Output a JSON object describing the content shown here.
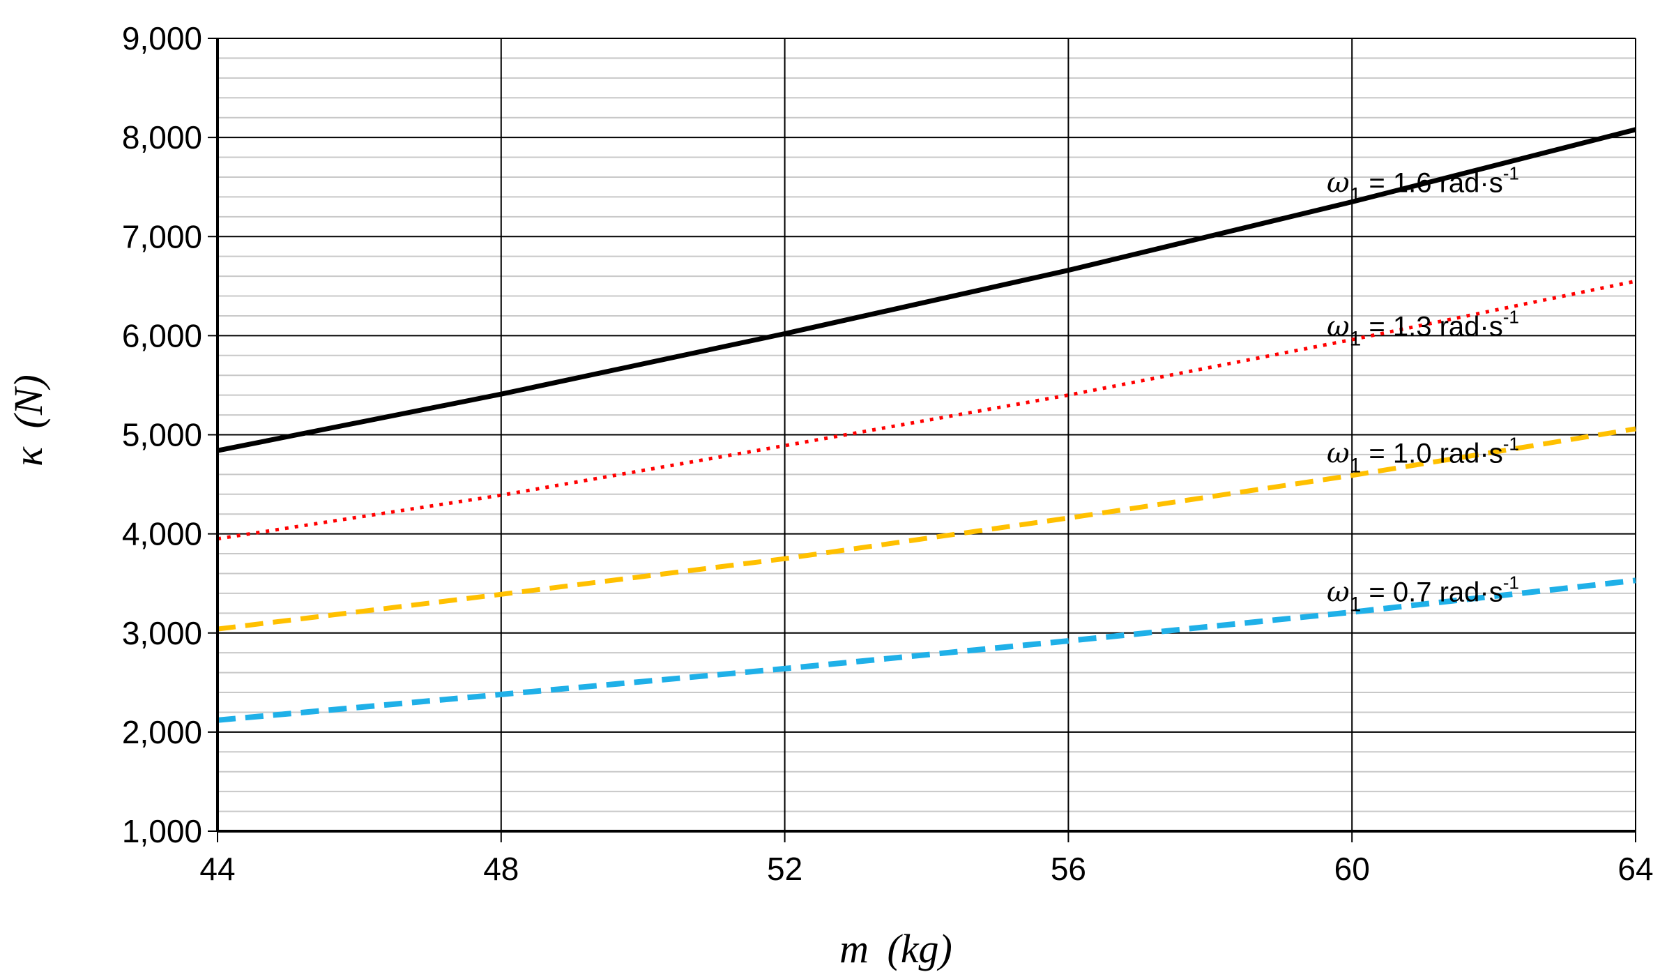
{
  "chart_data": {
    "type": "line",
    "title": "",
    "xlabel": {
      "symbol": "m",
      "unit": "(kg)"
    },
    "ylabel": {
      "symbol": "κ",
      "unit": "(N)"
    },
    "xlim": [
      44,
      64
    ],
    "ylim": [
      1000,
      9000
    ],
    "xticks": [
      44,
      48,
      52,
      56,
      60,
      64
    ],
    "xtick_labels": [
      "44",
      "48",
      "52",
      "56",
      "60",
      "64"
    ],
    "yticks": [
      1000,
      2000,
      3000,
      4000,
      5000,
      6000,
      7000,
      8000,
      9000
    ],
    "ytick_labels": [
      "1,000",
      "2,000",
      "3,000",
      "4,000",
      "5,000",
      "6,000",
      "7,000",
      "8,000",
      "9,000"
    ],
    "minor_y_step": 200,
    "grid": true,
    "legend": "none",
    "series": [
      {
        "name": "ω1 = 1.6 rad·s-1",
        "style": "solid",
        "color": "#000000",
        "x": [
          44,
          48,
          52,
          56,
          60,
          64
        ],
        "values": [
          4840,
          5410,
          6020,
          6660,
          7350,
          8080
        ],
        "label": {
          "omega": "ω",
          "sub": "1",
          "text": " = 1.6 rad·s",
          "sup": "-1",
          "x": 61.0,
          "y": 7450
        }
      },
      {
        "name": "ω1 = 1.3 rad·s-1",
        "style": "dotted",
        "color": "#ff0000",
        "x": [
          44,
          48,
          52,
          56,
          60,
          64
        ],
        "values": [
          3950,
          4390,
          4890,
          5400,
          5960,
          6550
        ],
        "label": {
          "omega": "ω",
          "sub": "1",
          "text": " = 1.3 rad·s",
          "sup": "-1",
          "x": 61.0,
          "y": 6000
        }
      },
      {
        "name": "ω1 = 1.0 rad·s-1",
        "style": "dashed",
        "color": "#ffc000",
        "x": [
          44,
          48,
          52,
          56,
          60,
          64
        ],
        "values": [
          3040,
          3390,
          3750,
          4160,
          4590,
          5060
        ],
        "label": {
          "omega": "ω",
          "sub": "1",
          "text": " = 1.0 rad·s",
          "sup": "-1",
          "x": 61.0,
          "y": 4720
        }
      },
      {
        "name": "ω1 = 0.7 rad·s-1",
        "style": "dashed",
        "color": "#1fb0e8",
        "x": [
          44,
          48,
          52,
          56,
          60,
          64
        ],
        "values": [
          2120,
          2380,
          2640,
          2920,
          3210,
          3530
        ],
        "label": {
          "omega": "ω",
          "sub": "1",
          "text": " = 0.7 rad·s",
          "sup": "-1",
          "x": 61.0,
          "y": 3320
        }
      }
    ]
  }
}
